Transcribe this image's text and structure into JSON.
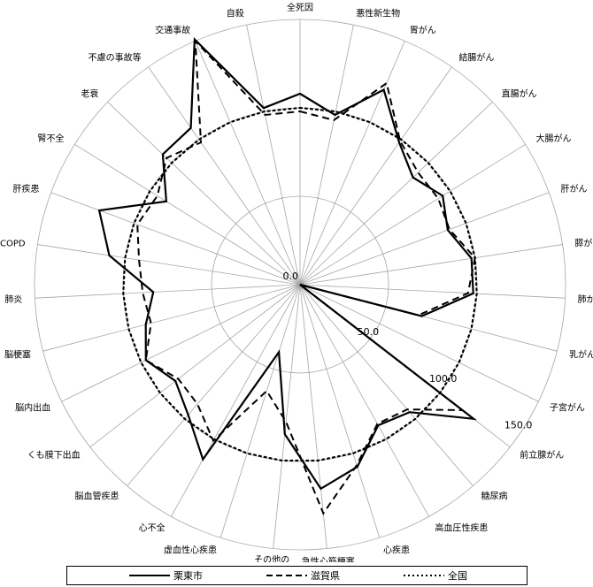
{
  "chart_data": {
    "type": "radar",
    "categories": [
      "全死因",
      "悪性新生物",
      "胃がん",
      "結腸がん",
      "直腸がん",
      "大腸がん",
      "肝がん",
      "膵がん",
      "肺がん",
      "乳がん",
      "子宮がん",
      "前立腺がん",
      "糖尿病",
      "高血圧性疾患",
      "心疾患",
      "急性心筋梗塞",
      "その他の\n虚血性心疾患",
      "虚血性心疾患",
      "心不全",
      "脳血管疾患",
      "くも膜下出血",
      "脳内出血",
      "脳梗塞",
      "肺炎",
      "COPD",
      "肝疾患",
      "腎不全",
      "老衰",
      "不慮の事故等",
      "交通事故",
      "自殺"
    ],
    "rlim": [
      0,
      150
    ],
    "ticks": [
      "0.0",
      "50.0",
      "100.0",
      "150.0"
    ],
    "tick_values": [
      0,
      50,
      100,
      150
    ],
    "grid": true,
    "legend_position": "bottom",
    "series": [
      {
        "name": "栗東市",
        "style": "solid",
        "values": [
          108,
          98,
          120,
          98,
          88,
          95,
          89,
          98,
          98,
          71,
          0,
          124,
          95,
          91,
          108,
          116,
          85,
          40,
          113,
          97,
          89,
          97,
          90,
          83,
          109,
          121,
          89,
          107,
          108,
          151,
          102
        ]
      },
      {
        "name": "滋賀県",
        "style": "dashed",
        "values": [
          98,
          95,
          124,
          99,
          92,
          92,
          90,
          100,
          95,
          69,
          0,
          116,
          93,
          90,
          107,
          130,
          78,
          63,
          101,
          89,
          87,
          97,
          87,
          89,
          92,
          98,
          95,
          104,
          98,
          150,
          98
        ]
      },
      {
        "name": "全国",
        "style": "dotted",
        "values": [
          100,
          100,
          100,
          100,
          100,
          100,
          100,
          100,
          100,
          100,
          100,
          100,
          100,
          100,
          100,
          100,
          100,
          100,
          100,
          100,
          100,
          100,
          100,
          100,
          100,
          100,
          100,
          100,
          100,
          100,
          100
        ]
      }
    ]
  }
}
